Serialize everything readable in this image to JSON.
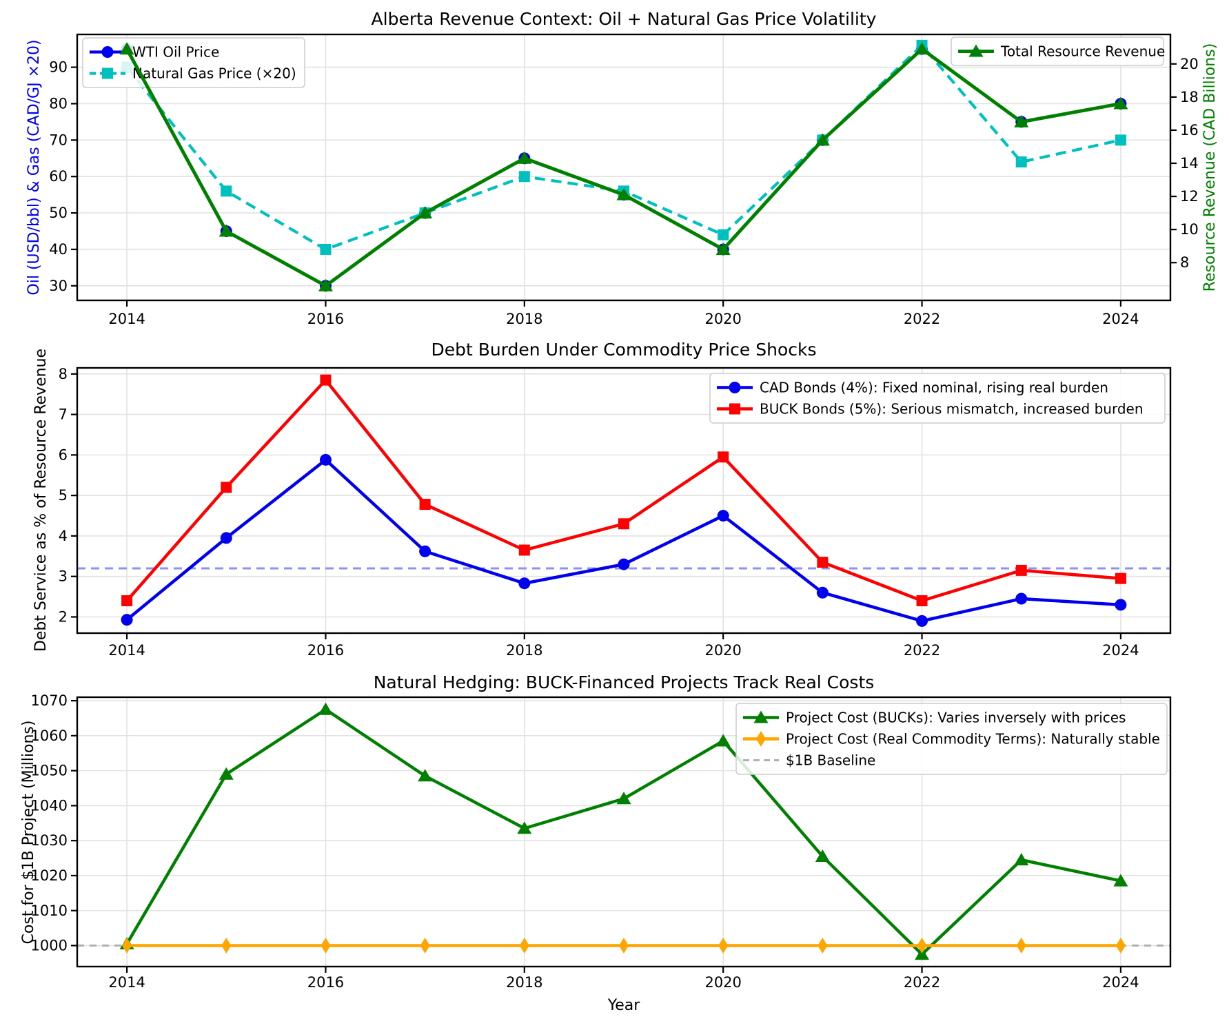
{
  "chart_data": [
    {
      "type": "line",
      "title": "Alberta Revenue Context: Oil + Natural Gas Price Volatility",
      "x": [
        2014,
        2015,
        2016,
        2017,
        2018,
        2019,
        2020,
        2021,
        2022,
        2023,
        2024
      ],
      "x_ticks": [
        2014,
        2016,
        2018,
        2020,
        2022,
        2024
      ],
      "xlim": [
        2013.5,
        2024.5
      ],
      "grid": true,
      "legend_position": "upper left and upper right",
      "axes": {
        "left": {
          "label": "Oil (USD/bbl) & Gas (CAD/GJ ×20)",
          "color": "#0000EE",
          "ticks": [
            30,
            40,
            50,
            60,
            70,
            80,
            90
          ],
          "ylim": [
            26,
            99
          ]
        },
        "right": {
          "label": "Resource Revenue (CAD Billions)",
          "color": "#008000",
          "ticks": [
            8,
            10,
            12,
            14,
            16,
            18,
            20
          ],
          "ylim": [
            5.72,
            21.78
          ]
        }
      },
      "series": [
        {
          "name": "WTI Oil Price",
          "axis": "left",
          "color": "#0000EE",
          "marker": "circle",
          "width": 4.2,
          "dash": null,
          "legend_group": 0,
          "values": [
            95,
            45,
            30,
            50,
            65,
            55,
            40,
            70,
            95,
            75,
            80
          ]
        },
        {
          "name": "Natural Gas Price (×20)",
          "axis": "left",
          "color": "#00BFBF",
          "marker": "square",
          "width": 4.2,
          "dash": [
            15,
            9
          ],
          "legend_group": 0,
          "values": [
            90,
            56,
            40,
            50,
            60,
            56,
            44,
            70,
            96,
            64,
            70
          ]
        },
        {
          "name": "Total Resource Revenue",
          "axis": "right",
          "color": "#008000",
          "marker": "triangle",
          "width": 5,
          "dash": null,
          "legend_group": 1,
          "values": [
            20.9,
            9.9,
            6.6,
            11.0,
            14.3,
            12.1,
            8.8,
            15.4,
            20.9,
            16.5,
            17.6
          ]
        }
      ]
    },
    {
      "type": "line",
      "title": "Debt Burden Under Commodity Price Shocks",
      "x": [
        2014,
        2015,
        2016,
        2017,
        2018,
        2019,
        2020,
        2021,
        2022,
        2023,
        2024
      ],
      "x_ticks": [
        2014,
        2016,
        2018,
        2020,
        2022,
        2024
      ],
      "xlim": [
        2013.5,
        2024.5
      ],
      "grid": true,
      "legend_position": "upper right",
      "axes": {
        "left": {
          "label": "Debt Service as % of Resource Revenue",
          "color": "#000000",
          "ticks": [
            2,
            3,
            4,
            5,
            6,
            7,
            8
          ],
          "ylim": [
            1.6,
            8.15
          ]
        }
      },
      "ref_line": {
        "value": 3.2,
        "color": "#8F8FF5"
      },
      "series": [
        {
          "name": "CAD Bonds (4%): Fixed nominal, rising real burden",
          "axis": "left",
          "color": "#0000EE",
          "marker": "circle",
          "width": 4.5,
          "dash": null,
          "legend_group": 0,
          "values": [
            1.93,
            3.95,
            5.88,
            3.62,
            2.83,
            3.3,
            4.5,
            2.6,
            1.9,
            2.45,
            2.3
          ]
        },
        {
          "name": "BUCK Bonds (5%): Serious mismatch, increased burden",
          "axis": "left",
          "color": "#FF0000",
          "marker": "square",
          "width": 4.5,
          "dash": null,
          "legend_group": 0,
          "values": [
            2.4,
            5.2,
            7.85,
            4.78,
            3.65,
            4.3,
            5.95,
            3.35,
            2.4,
            3.15,
            2.95
          ]
        }
      ]
    },
    {
      "type": "line",
      "title": "Natural Hedging: BUCK-Financed Projects Track Real Costs",
      "xlabel": "Year",
      "x": [
        2014,
        2015,
        2016,
        2017,
        2018,
        2019,
        2020,
        2021,
        2022,
        2023,
        2024
      ],
      "x_ticks": [
        2014,
        2016,
        2018,
        2020,
        2022,
        2024
      ],
      "xlim": [
        2013.5,
        2024.5
      ],
      "grid": true,
      "legend_position": "upper right",
      "axes": {
        "left": {
          "label": "Cost for $1B Project (Millions)",
          "color": "#000000",
          "ticks": [
            1000,
            1010,
            1020,
            1030,
            1040,
            1050,
            1060,
            1070
          ],
          "ylim": [
            994,
            1071
          ]
        }
      },
      "series": [
        {
          "name": "Project Cost (BUCKs): Varies inversely with prices",
          "axis": "left",
          "color": "#008000",
          "marker": "triangle",
          "width": 4.5,
          "dash": null,
          "legend_group": 0,
          "values": [
            1000.5,
            1049,
            1067.5,
            1048.5,
            1033.5,
            1042,
            1058.5,
            1025.5,
            997.5,
            1024.5,
            1018.5
          ]
        },
        {
          "name": "Project Cost (Real Commodity Terms): Naturally stable",
          "axis": "left",
          "color": "#FFA500",
          "marker": "diamond",
          "width": 4.5,
          "dash": null,
          "legend_group": 0,
          "values": [
            1000,
            1000,
            1000,
            1000,
            1000,
            1000,
            1000,
            1000,
            1000,
            1000,
            1000
          ]
        },
        {
          "name": "$1B Baseline",
          "axis": "left",
          "color": "#B0B0B0",
          "marker": null,
          "width": 3,
          "dash": [
            10,
            8
          ],
          "legend_group": 0,
          "full_width": true,
          "values": [
            1000,
            1000,
            1000,
            1000,
            1000,
            1000,
            1000,
            1000,
            1000,
            1000,
            1000
          ]
        }
      ]
    }
  ]
}
